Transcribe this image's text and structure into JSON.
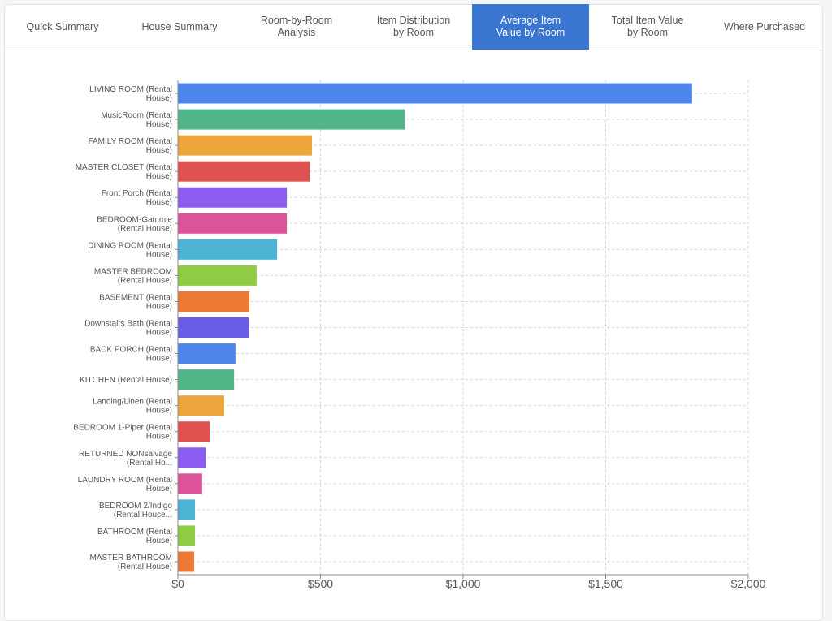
{
  "tabs": [
    {
      "label": "Quick Summary",
      "active": false
    },
    {
      "label": "House Summary",
      "active": false
    },
    {
      "label": "Room-by-Room\nAnalysis",
      "active": false
    },
    {
      "label": "Item Distribution\nby Room",
      "active": false
    },
    {
      "label": "Average Item\nValue by Room",
      "active": true
    },
    {
      "label": "Total Item Value\nby Room",
      "active": false
    },
    {
      "label": "Where Purchased",
      "active": false
    }
  ],
  "chart_data": {
    "type": "bar",
    "orientation": "horizontal",
    "title": "",
    "xlabel": "",
    "ylabel": "",
    "xlim": [
      0,
      2000
    ],
    "xticks": [
      0,
      500,
      1000,
      1500,
      2000
    ],
    "xtick_labels": [
      "$0",
      "$500",
      "$1,000",
      "$1,500",
      "$2,000"
    ],
    "grid": true,
    "categories": [
      [
        "LIVING ROOM (Rental",
        "House)"
      ],
      [
        "MusicRoom (Rental",
        "House)"
      ],
      [
        "FAMILY ROOM (Rental",
        "House)"
      ],
      [
        "MASTER CLOSET (Rental",
        "House)"
      ],
      [
        "Front Porch (Rental",
        "House)"
      ],
      [
        "BEDROOM-Gammie",
        "(Rental House)"
      ],
      [
        "DINING ROOM (Rental",
        "House)"
      ],
      [
        "MASTER BEDROOM",
        "(Rental House)"
      ],
      [
        "BASEMENT (Rental",
        "House)"
      ],
      [
        "Downstairs Bath (Rental",
        "House)"
      ],
      [
        "BACK PORCH (Rental",
        "House)"
      ],
      [
        "KITCHEN (Rental House)"
      ],
      [
        "Landing/Linen (Rental",
        "House)"
      ],
      [
        "BEDROOM 1-Piper (Rental",
        "House)"
      ],
      [
        "RETURNED NONsalvage",
        "(Rental Ho..."
      ],
      [
        "LAUNDRY ROOM (Rental",
        "House)"
      ],
      [
        "BEDROOM 2/Indigo",
        "(Rental House..."
      ],
      [
        "BATHROOM (Rental",
        "House)"
      ],
      [
        "MASTER BATHROOM",
        "(Rental House)"
      ]
    ],
    "values": [
      1803,
      795,
      470,
      462,
      382,
      382,
      348,
      276,
      251,
      248,
      202,
      197,
      162,
      111,
      97,
      85,
      60,
      60,
      57
    ],
    "colors": [
      "#4f86ec",
      "#52b788",
      "#eca63c",
      "#e0524f",
      "#8a5cf0",
      "#dc5399",
      "#4db4d6",
      "#8fcb45",
      "#ec7a35",
      "#6a5ee8"
    ]
  }
}
